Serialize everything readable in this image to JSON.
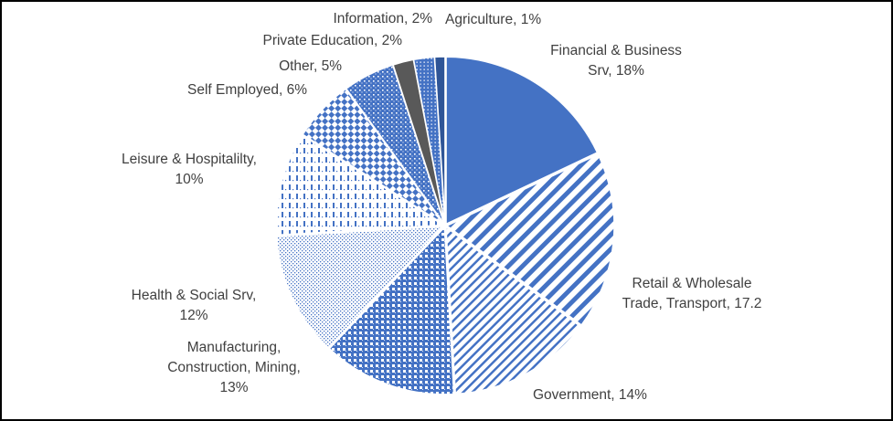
{
  "chart_data": {
    "type": "pie",
    "title": "",
    "slices": [
      {
        "label": [
          "Agriculture, 1%"
        ],
        "value": 1,
        "color": "#2f5597",
        "pattern": "solid"
      },
      {
        "label": [
          "Financial & Business",
          "Srv, 18%"
        ],
        "value": 18,
        "color": "#4472c4",
        "pattern": "solid"
      },
      {
        "label": [
          "Retail & Wholesale",
          "Trade, Transport, 17.2"
        ],
        "value": 17.2,
        "color": "#4472c4",
        "pattern": "wide-diagonal"
      },
      {
        "label": [
          "Government, 14%"
        ],
        "value": 14,
        "color": "#4472c4",
        "pattern": "narrow-diagonal"
      },
      {
        "label": [
          "Manufacturing,",
          "Construction, Mining,",
          "13%"
        ],
        "value": 13,
        "color": "#4472c4",
        "pattern": "small-grid"
      },
      {
        "label": [
          "Health & Social Srv,",
          "12%"
        ],
        "value": 12,
        "color": "#4472c4",
        "pattern": "small-dots"
      },
      {
        "label": [
          "Leisure & Hospitalilty,",
          "10%"
        ],
        "value": 10,
        "color": "#4472c4",
        "pattern": "dashed-vertical"
      },
      {
        "label": [
          "Self Employed, 6%"
        ],
        "value": 6,
        "color": "#4472c4",
        "pattern": "check"
      },
      {
        "label": [
          "Other, 5%"
        ],
        "value": 5,
        "color": "#4472c4",
        "pattern": "large-dots"
      },
      {
        "label": [
          "Private Education, 2%"
        ],
        "value": 2,
        "color": "#595959",
        "pattern": "solid"
      },
      {
        "label": [
          "Information, 2%"
        ],
        "value": 2,
        "color": "#4472c4",
        "pattern": "dotted-grid"
      }
    ]
  }
}
